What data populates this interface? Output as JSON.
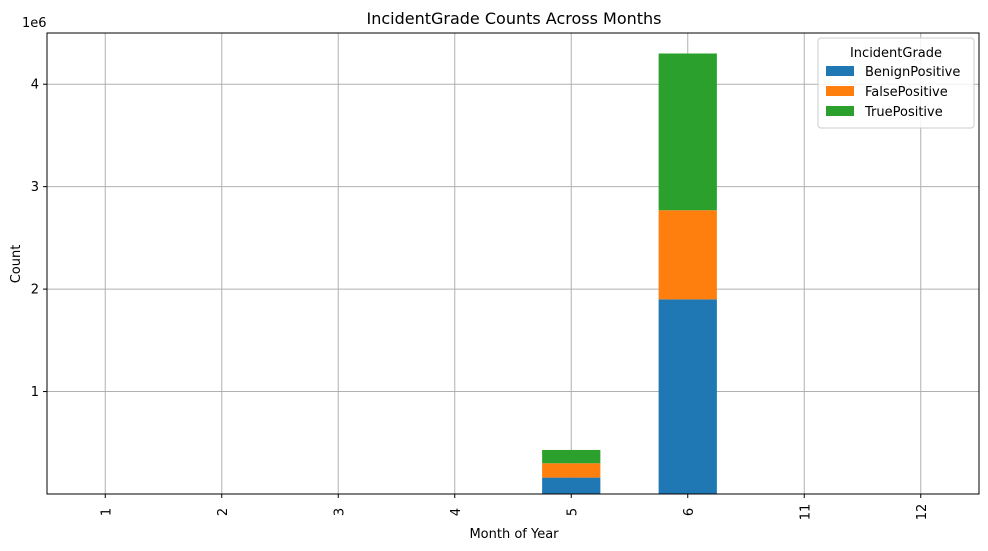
{
  "chart_data": {
    "type": "bar",
    "stacked": true,
    "title": "IncidentGrade Counts Across Months",
    "xlabel": "Month of Year",
    "ylabel": "Count",
    "y_scale_label": "1e6",
    "categories": [
      "1",
      "2",
      "3",
      "4",
      "5",
      "6",
      "11",
      "12"
    ],
    "ylim": [
      0,
      4.5
    ],
    "yticks": [
      "1",
      "2",
      "3",
      "4"
    ],
    "grid": true,
    "legend": {
      "title": "IncidentGrade",
      "placement": "top-right"
    },
    "series": [
      {
        "name": "BenignPositive",
        "color": "#1f77b4",
        "values": [
          0,
          0,
          0,
          0,
          0.16,
          1.9,
          0,
          0
        ]
      },
      {
        "name": "FalsePositive",
        "color": "#ff7f0e",
        "values": [
          0,
          0,
          0,
          0,
          0.14,
          0.87,
          0,
          0
        ]
      },
      {
        "name": "TruePositive",
        "color": "#2ca02c",
        "values": [
          0,
          0,
          0,
          0,
          0.13,
          1.53,
          0,
          0
        ]
      }
    ]
  }
}
